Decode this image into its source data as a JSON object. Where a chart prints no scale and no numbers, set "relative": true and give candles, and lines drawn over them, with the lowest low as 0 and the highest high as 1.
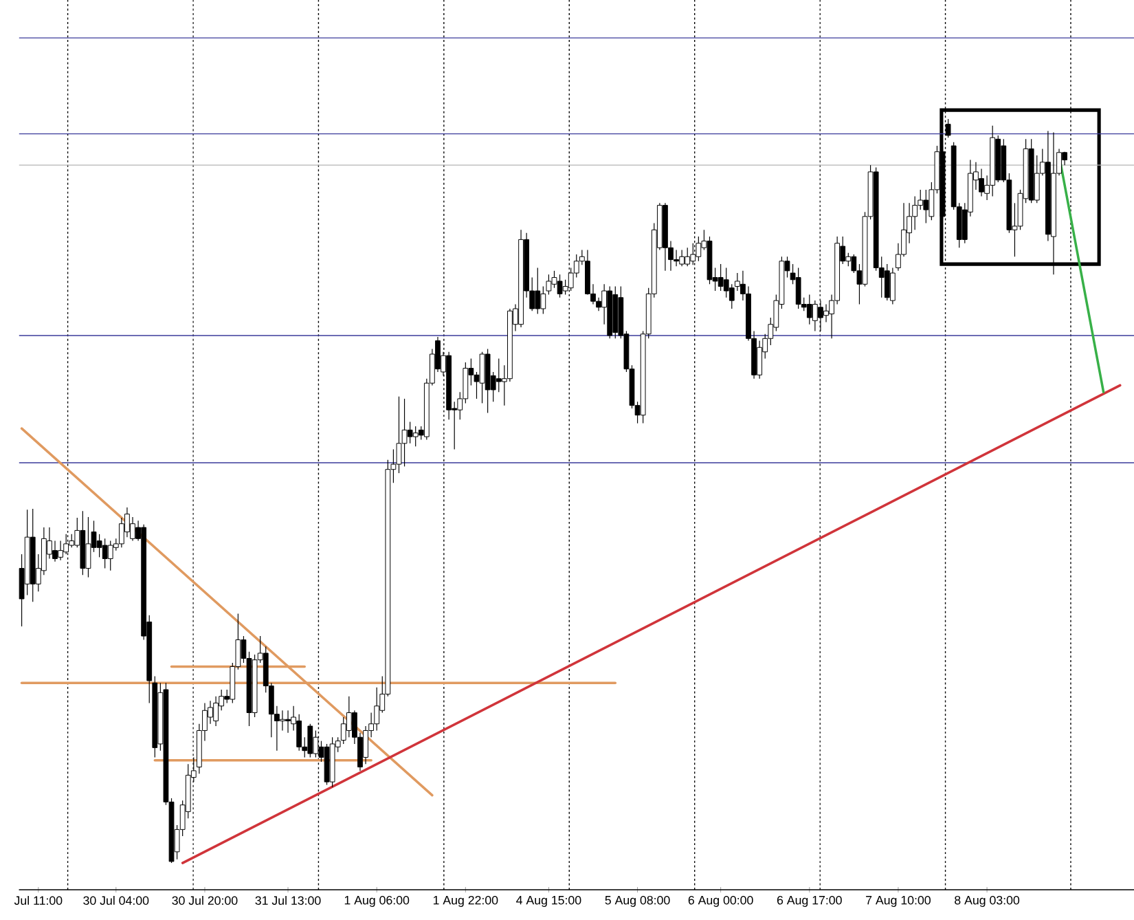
{
  "chart_data": {
    "type": "candlestick",
    "relative": true,
    "categories": [
      null,
      null,
      null,
      "Jul 11:00",
      null,
      null,
      null,
      null,
      null,
      null,
      null,
      null,
      null,
      null,
      null,
      null,
      null,
      "30 Jul 04:00",
      null,
      null,
      null,
      null,
      null,
      null,
      null,
      null,
      null,
      null,
      null,
      null,
      null,
      null,
      null,
      "30 Jul 20:00",
      null,
      null,
      null,
      null,
      null,
      null,
      null,
      null,
      null,
      null,
      null,
      null,
      null,
      null,
      "31 Jul 13:00",
      null,
      null,
      null,
      null,
      null,
      null,
      null,
      null,
      null,
      null,
      null,
      null,
      null,
      null,
      null,
      "1 Aug 06:00",
      null,
      null,
      null,
      null,
      null,
      null,
      null,
      null,
      null,
      null,
      null,
      null,
      null,
      null,
      null,
      "1 Aug 22:00",
      null,
      null,
      null,
      null,
      null,
      null,
      null,
      null,
      null,
      null,
      null,
      null,
      null,
      null,
      "4 Aug 15:00",
      null,
      null,
      null,
      null,
      null,
      null,
      null,
      null,
      null,
      null,
      null,
      null,
      null,
      null,
      null,
      "5 Aug 08:00",
      null,
      null,
      null,
      null,
      null,
      null,
      null,
      null,
      null,
      null,
      null,
      null,
      null,
      null,
      "6 Aug 00:00",
      null,
      null,
      null,
      null,
      null,
      null,
      null,
      null,
      null,
      null,
      null,
      null,
      null,
      null,
      null,
      "6 Aug 17:00",
      null,
      null,
      null,
      null,
      null,
      null,
      null,
      null,
      null,
      null,
      null,
      null,
      null,
      null,
      null,
      "7 Aug 10:00",
      null,
      null,
      null,
      null,
      null,
      null,
      null,
      null,
      null,
      null,
      null,
      null,
      null,
      null,
      null,
      "8 Aug 03:00",
      null,
      null,
      null,
      null,
      null,
      null,
      null,
      null,
      null,
      null,
      null,
      null,
      null,
      null,
      null,
      null,
      null,
      null,
      null,
      null,
      null,
      null,
      null,
      null,
      null,
      null
    ],
    "ohlc": [
      [
        0.396,
        0.415,
        0.318,
        0.355
      ],
      [
        0.375,
        0.475,
        0.36,
        0.438
      ],
      [
        0.438,
        0.476,
        0.351,
        0.375
      ],
      [
        0.375,
        0.415,
        0.365,
        0.396
      ],
      [
        0.393,
        0.451,
        0.387,
        0.436
      ],
      [
        0.415,
        0.451,
        0.409,
        0.433
      ],
      [
        0.42,
        0.433,
        0.405,
        0.409
      ],
      [
        0.411,
        0.433,
        0.407,
        0.42
      ],
      [
        0.418,
        0.442,
        0.415,
        0.429
      ],
      [
        0.427,
        0.442,
        0.424,
        0.433
      ],
      [
        0.427,
        0.464,
        0.424,
        0.447
      ],
      [
        0.447,
        0.473,
        0.387,
        0.396
      ],
      [
        0.396,
        0.465,
        0.384,
        0.429
      ],
      [
        0.445,
        0.46,
        0.418,
        0.424
      ],
      [
        0.433,
        0.442,
        0.411,
        0.424
      ],
      [
        0.427,
        0.436,
        0.396,
        0.409
      ],
      [
        0.409,
        0.433,
        0.393,
        0.427
      ],
      [
        0.424,
        0.436,
        0.42,
        0.429
      ],
      [
        0.429,
        0.464,
        0.424,
        0.456
      ],
      [
        0.445,
        0.478,
        0.438,
        0.469
      ],
      [
        0.436,
        0.465,
        0.433,
        0.456
      ],
      [
        0.451,
        0.46,
        0.433,
        0.436
      ],
      [
        0.451,
        0.455,
        0.3,
        0.305
      ],
      [
        0.324,
        0.333,
        0.215,
        0.245
      ],
      [
        0.242,
        0.251,
        0.142,
        0.155
      ],
      [
        0.16,
        0.242,
        0.151,
        0.229
      ],
      [
        0.233,
        0.242,
        0.078,
        0.082
      ],
      [
        0.082,
        0.087,
        0,
        0.002
      ],
      [
        0.015,
        0.051,
        0.005,
        0.045
      ],
      [
        0.045,
        0.084,
        0.036,
        0.078
      ],
      [
        0.069,
        0.133,
        0.06,
        0.118
      ],
      [
        0.115,
        0.142,
        0.109,
        0.124
      ],
      [
        0.129,
        0.187,
        0.12,
        0.178
      ],
      [
        0.178,
        0.215,
        0.164,
        0.205
      ],
      [
        0.196,
        0.218,
        0.187,
        0.209
      ],
      [
        0.191,
        0.224,
        0.184,
        0.215
      ],
      [
        0.211,
        0.233,
        0.205,
        0.224
      ],
      [
        0.224,
        0.233,
        0.215,
        0.22
      ],
      [
        0.22,
        0.269,
        0.215,
        0.264
      ],
      [
        0.264,
        0.335,
        0.26,
        0.3
      ],
      [
        0.3,
        0.305,
        0.269,
        0.275
      ],
      [
        0.275,
        0.284,
        0.184,
        0.202
      ],
      [
        0.202,
        0.28,
        0.196,
        0.273
      ],
      [
        0.273,
        0.305,
        0.269,
        0.282
      ],
      [
        0.282,
        0.291,
        0.229,
        0.238
      ],
      [
        0.238,
        0.242,
        0.169,
        0.2
      ],
      [
        0.2,
        0.211,
        0.151,
        0.191
      ],
      [
        0.191,
        0.205,
        0.178,
        0.193
      ],
      [
        0.193,
        0.205,
        0.175,
        0.191
      ],
      [
        0.187,
        0.211,
        0.178,
        0.196
      ],
      [
        0.191,
        0.2,
        0.151,
        0.156
      ],
      [
        0.156,
        0.169,
        0.142,
        0.151
      ],
      [
        0.184,
        0.187,
        0.142,
        0.147
      ],
      [
        0.147,
        0.178,
        0.142,
        0.169
      ],
      [
        0.156,
        0.164,
        0.136,
        0.142
      ],
      [
        0.156,
        0.16,
        0.105,
        0.109
      ],
      [
        0.109,
        0.169,
        0.102,
        0.16
      ],
      [
        0.156,
        0.169,
        0.149,
        0.164
      ],
      [
        0.165,
        0.196,
        0.16,
        0.187
      ],
      [
        0.178,
        0.224,
        0.169,
        0.202
      ],
      [
        0.202,
        0.205,
        0.16,
        0.169
      ],
      [
        0.169,
        0.175,
        0.124,
        0.129
      ],
      [
        0.142,
        0.184,
        0.133,
        0.178
      ],
      [
        0.178,
        0.202,
        0.169,
        0.187
      ],
      [
        0.187,
        0.236,
        0.178,
        0.211
      ],
      [
        0.205,
        0.251,
        0.202,
        0.227
      ],
      [
        0.227,
        0.542,
        0.224,
        0.529
      ],
      [
        0.529,
        0.556,
        0.511,
        0.536
      ],
      [
        0.536,
        0.627,
        0.524,
        0.564
      ],
      [
        0.564,
        0.624,
        0.533,
        0.582
      ],
      [
        0.582,
        0.593,
        0.564,
        0.573
      ],
      [
        0.573,
        0.587,
        0.56,
        0.578
      ],
      [
        0.582,
        0.587,
        0.569,
        0.575
      ],
      [
        0.573,
        0.651,
        0.569,
        0.645
      ],
      [
        0.645,
        0.691,
        0.642,
        0.684
      ],
      [
        0.702,
        0.707,
        0.66,
        0.664
      ],
      [
        0.66,
        0.687,
        0.655,
        0.682
      ],
      [
        0.682,
        0.687,
        0.596,
        0.609
      ],
      [
        0.611,
        0.62,
        0.556,
        0.609
      ],
      [
        0.609,
        0.633,
        0.596,
        0.624
      ],
      [
        0.624,
        0.673,
        0.618,
        0.665
      ],
      [
        0.665,
        0.678,
        0.642,
        0.656
      ],
      [
        0.656,
        0.66,
        0.624,
        0.647
      ],
      [
        0.645,
        0.687,
        0.618,
        0.684
      ],
      [
        0.684,
        0.691,
        0.605,
        0.636
      ],
      [
        0.655,
        0.66,
        0.62,
        0.636
      ],
      [
        0.651,
        0.678,
        0.633,
        0.647
      ],
      [
        0.647,
        0.669,
        0.615,
        0.651
      ],
      [
        0.651,
        0.745,
        0.647,
        0.742
      ],
      [
        0.724,
        0.751,
        0.715,
        0.745
      ],
      [
        0.724,
        0.851,
        0.72,
        0.838
      ],
      [
        0.838,
        0.847,
        0.76,
        0.769
      ],
      [
        0.769,
        0.787,
        0.742,
        0.745
      ],
      [
        0.769,
        0.8,
        0.738,
        0.745
      ],
      [
        0.745,
        0.775,
        0.738,
        0.765
      ],
      [
        0.769,
        0.791,
        0.764,
        0.782
      ],
      [
        0.778,
        0.796,
        0.773,
        0.787
      ],
      [
        0.782,
        0.791,
        0.76,
        0.765
      ],
      [
        0.769,
        0.784,
        0.764,
        0.775
      ],
      [
        0.773,
        0.8,
        0.769,
        0.793
      ],
      [
        0.793,
        0.818,
        0.787,
        0.809
      ],
      [
        0.809,
        0.824,
        0.804,
        0.815
      ],
      [
        0.809,
        0.824,
        0.764,
        0.765
      ],
      [
        0.765,
        0.778,
        0.751,
        0.755
      ],
      [
        0.755,
        0.76,
        0.742,
        0.747
      ],
      [
        0.747,
        0.778,
        0.724,
        0.769
      ],
      [
        0.769,
        0.775,
        0.705,
        0.709
      ],
      [
        0.764,
        0.775,
        0.705,
        0.713
      ],
      [
        0.76,
        0.775,
        0.705,
        0.709
      ],
      [
        0.711,
        0.715,
        0.66,
        0.664
      ],
      [
        0.664,
        0.669,
        0.611,
        0.615
      ],
      [
        0.615,
        0.62,
        0.591,
        0.602
      ],
      [
        0.602,
        0.715,
        0.591,
        0.711
      ],
      [
        0.711,
        0.773,
        0.705,
        0.765
      ],
      [
        0.765,
        0.86,
        0.76,
        0.851
      ],
      [
        0.827,
        0.887,
        0.824,
        0.884
      ],
      [
        0.884,
        0.887,
        0.796,
        0.827
      ],
      [
        0.827,
        0.836,
        0.796,
        0.811
      ],
      [
        0.811,
        0.824,
        0.802,
        0.809
      ],
      [
        0.805,
        0.824,
        0.802,
        0.815
      ],
      [
        0.805,
        0.827,
        0.802,
        0.815
      ],
      [
        0.809,
        0.833,
        0.804,
        0.818
      ],
      [
        0.815,
        0.842,
        0.809,
        0.833
      ],
      [
        0.827,
        0.851,
        0.824,
        0.836
      ],
      [
        0.836,
        0.842,
        0.778,
        0.784
      ],
      [
        0.787,
        0.8,
        0.769,
        0.782
      ],
      [
        0.787,
        0.805,
        0.769,
        0.775
      ],
      [
        0.784,
        0.8,
        0.76,
        0.769
      ],
      [
        0.773,
        0.778,
        0.745,
        0.756
      ],
      [
        0.775,
        0.793,
        0.769,
        0.782
      ],
      [
        0.778,
        0.796,
        0.756,
        0.765
      ],
      [
        0.765,
        0.775,
        0.702,
        0.705
      ],
      [
        0.705,
        0.715,
        0.651,
        0.656
      ],
      [
        0.656,
        0.702,
        0.651,
        0.693
      ],
      [
        0.687,
        0.711,
        0.678,
        0.705
      ],
      [
        0.705,
        0.733,
        0.696,
        0.724
      ],
      [
        0.72,
        0.764,
        0.715,
        0.756
      ],
      [
        0.751,
        0.815,
        0.745,
        0.809
      ],
      [
        0.809,
        0.815,
        0.787,
        0.796
      ],
      [
        0.793,
        0.805,
        0.778,
        0.784
      ],
      [
        0.787,
        0.8,
        0.745,
        0.751
      ],
      [
        0.751,
        0.76,
        0.742,
        0.747
      ],
      [
        0.751,
        0.764,
        0.724,
        0.733
      ],
      [
        0.729,
        0.756,
        0.715,
        0.751
      ],
      [
        0.747,
        0.756,
        0.715,
        0.733
      ],
      [
        0.736,
        0.751,
        0.727,
        0.742
      ],
      [
        0.738,
        0.764,
        0.705,
        0.756
      ],
      [
        0.756,
        0.842,
        0.751,
        0.833
      ],
      [
        0.829,
        0.842,
        0.805,
        0.809
      ],
      [
        0.809,
        0.82,
        0.802,
        0.815
      ],
      [
        0.815,
        0.818,
        0.793,
        0.796
      ],
      [
        0.796,
        0.805,
        0.751,
        0.778
      ],
      [
        0.778,
        0.875,
        0.775,
        0.869
      ],
      [
        0.869,
        0.938,
        0.865,
        0.929
      ],
      [
        0.929,
        0.935,
        0.796,
        0.8
      ],
      [
        0.8,
        0.815,
        0.76,
        0.787
      ],
      [
        0.796,
        0.805,
        0.756,
        0.76
      ],
      [
        0.756,
        0.8,
        0.751,
        0.793
      ],
      [
        0.8,
        0.833,
        0.796,
        0.818
      ],
      [
        0.818,
        0.887,
        0.815,
        0.851
      ],
      [
        0.847,
        0.887,
        0.833,
        0.869
      ],
      [
        0.869,
        0.896,
        0.851,
        0.884
      ],
      [
        0.884,
        0.905,
        0.878,
        0.891
      ],
      [
        0.891,
        0.905,
        0.86,
        0.878
      ],
      [
        0.869,
        0.915,
        0.864,
        0.905
      ],
      [
        0.905,
        0.964,
        0.9,
        0.956
      ],
      [
        0.956,
        0.964,
        0.865,
        0.869
      ],
      [
        0.993,
        1,
        0.975,
        0.978
      ],
      [
        0.964,
        0.969,
        0.878,
        0.882
      ],
      [
        0.882,
        0.887,
        0.827,
        0.838
      ],
      [
        0.878,
        0.887,
        0.833,
        0.838
      ],
      [
        0.875,
        0.945,
        0.869,
        0.927
      ],
      [
        0.918,
        0.942,
        0.905,
        0.929
      ],
      [
        0.92,
        0.933,
        0.896,
        0.902
      ],
      [
        0.9,
        0.924,
        0.891,
        0.911
      ],
      [
        0.911,
        0.991,
        0.896,
        0.975
      ],
      [
        0.973,
        0.978,
        0.915,
        0.918
      ],
      [
        0.964,
        0.973,
        0.915,
        0.918
      ],
      [
        0.918,
        0.927,
        0.847,
        0.851
      ],
      [
        0.851,
        0.887,
        0.815,
        0.856
      ],
      [
        0.856,
        0.905,
        0.851,
        0.9
      ],
      [
        0.893,
        0.973,
        0.887,
        0.96
      ],
      [
        0.96,
        0.973,
        0.887,
        0.891
      ],
      [
        0.891,
        0.951,
        0.887,
        0.927
      ],
      [
        0.927,
        0.96,
        0.924,
        0.942
      ],
      [
        0.942,
        0.984,
        0.836,
        0.845
      ],
      [
        0.842,
        0.982,
        0.791,
        0.927
      ],
      [
        0.927,
        0.96,
        0.924,
        0.955
      ],
      [
        0.955,
        0.956,
        0.938,
        0.945
      ],
      null,
      null,
      null,
      null,
      null,
      null,
      null,
      null,
      null,
      null,
      null,
      null
    ],
    "ref_lines": [
      {
        "axis": "y",
        "value": 1.109,
        "color": "#3a3a9a",
        "line_style": "solid"
      },
      {
        "axis": "y",
        "value": 0.98,
        "color": "#3a3a9a",
        "line_style": "solid"
      },
      {
        "axis": "y",
        "value": 0.938,
        "color": "#b4b4b4",
        "line_style": "solid"
      },
      {
        "axis": "y",
        "value": 0.709,
        "color": "#3a3a9a",
        "line_style": "solid"
      },
      {
        "axis": "y",
        "value": 0.538,
        "color": "#3a3a9a",
        "line_style": "solid"
      }
    ],
    "series": [
      {
        "type": "line",
        "color": "#e09a60",
        "values": [
          0.584,
          null,
          null,
          null,
          null,
          null,
          null,
          null,
          null,
          null,
          null,
          null,
          null,
          null,
          null,
          null,
          null,
          null,
          null,
          null,
          null,
          null,
          null,
          null,
          null,
          null,
          null,
          null,
          null,
          null,
          null,
          null,
          null,
          null,
          null,
          null,
          null,
          null,
          null,
          null,
          null,
          null,
          null,
          null,
          null,
          null,
          null,
          null,
          null,
          null,
          null,
          null,
          null,
          null,
          null,
          null,
          null,
          null,
          null,
          null,
          null,
          null,
          null,
          null,
          null,
          null,
          null,
          null,
          null,
          null,
          null,
          null,
          null,
          null,
          0.091,
          null,
          null,
          null,
          null,
          null,
          null,
          null,
          null,
          null,
          null,
          null,
          null,
          null,
          null,
          null,
          null,
          null,
          null,
          null,
          null,
          null,
          null,
          null,
          null,
          null,
          null,
          null,
          null,
          null,
          null,
          null,
          null,
          null,
          null,
          null,
          null,
          null,
          null,
          null,
          null,
          null,
          null,
          null,
          null,
          null,
          null,
          null,
          null,
          null,
          null,
          null,
          null,
          null,
          null,
          null,
          null,
          null,
          null,
          null,
          null,
          null,
          null,
          null,
          null,
          null,
          null,
          null,
          null,
          null,
          null,
          null,
          null,
          null,
          null,
          null,
          null,
          null,
          null,
          null,
          null,
          null,
          null,
          null,
          null,
          null,
          null,
          null,
          null,
          null,
          null,
          null,
          null,
          null,
          null,
          null,
          null,
          null,
          null,
          null,
          null,
          null,
          null,
          null,
          null,
          null,
          null,
          null,
          null,
          null,
          null,
          null,
          null,
          null,
          null,
          null,
          null,
          null,
          null,
          null,
          null,
          null,
          null,
          null,
          null,
          null,
          null
        ]
      },
      {
        "type": "line",
        "color": "#e09a60",
        "values": [
          0.242,
          null,
          null,
          null,
          null,
          null,
          null,
          null,
          null,
          null,
          null,
          null,
          null,
          null,
          null,
          null,
          null,
          null,
          null,
          null,
          null,
          null,
          null,
          null,
          null,
          null,
          null,
          null,
          null,
          null,
          null,
          null,
          null,
          null,
          null,
          null,
          null,
          null,
          null,
          null,
          null,
          null,
          null,
          null,
          null,
          null,
          null,
          null,
          null,
          null,
          null,
          null,
          null,
          null,
          null,
          null,
          null,
          null,
          null,
          null,
          null,
          null,
          null,
          null,
          null,
          null,
          null,
          null,
          null,
          null,
          null,
          null,
          null,
          null,
          null,
          null,
          null,
          null,
          null,
          null,
          null,
          null,
          null,
          null,
          null,
          null,
          null,
          null,
          null,
          null,
          null,
          null,
          null,
          null,
          null,
          null,
          null,
          null,
          null,
          null,
          null,
          null,
          null,
          null,
          null,
          null,
          null,
          0.242,
          null,
          null,
          null,
          null,
          null,
          null,
          null,
          null,
          null,
          null,
          null,
          null,
          null,
          null,
          null,
          null,
          null,
          null,
          null,
          null,
          null,
          null,
          null,
          null,
          null,
          null,
          null,
          null,
          null,
          null,
          null,
          null,
          null,
          null,
          null,
          null,
          null,
          null,
          null,
          null,
          null,
          null,
          null,
          null,
          null,
          null,
          null,
          null,
          null,
          null,
          null,
          null,
          null,
          null,
          null,
          null,
          null,
          null,
          null,
          null,
          null,
          null,
          null,
          null,
          null,
          null,
          null,
          null,
          null,
          null,
          null,
          null,
          null,
          null,
          null,
          null,
          null,
          null,
          null,
          null,
          null,
          null,
          null,
          null,
          null,
          null,
          null,
          null,
          null,
          null,
          null,
          null,
          null
        ]
      },
      {
        "type": "line",
        "color": "#e09a60",
        "values": [
          null,
          null,
          null,
          null,
          null,
          null,
          null,
          null,
          null,
          null,
          null,
          null,
          null,
          null,
          null,
          null,
          null,
          null,
          null,
          null,
          null,
          null,
          null,
          null,
          null,
          null,
          null,
          0.264,
          null,
          null,
          null,
          null,
          null,
          null,
          null,
          null,
          null,
          null,
          null,
          null,
          null,
          null,
          null,
          null,
          null,
          null,
          null,
          null,
          null,
          null,
          null,
          0.264,
          null,
          null,
          null,
          null,
          null,
          null,
          null,
          null,
          null,
          null,
          null,
          null,
          null,
          null,
          null,
          null,
          null,
          null,
          null,
          null,
          null,
          null,
          null,
          null,
          null,
          null,
          null,
          null,
          null,
          null,
          null,
          null,
          null,
          null,
          null,
          null,
          null,
          null,
          null,
          null,
          null,
          null,
          null,
          null,
          null,
          null,
          null,
          null,
          null,
          null,
          null,
          null,
          null,
          null,
          null,
          null,
          null,
          null,
          null,
          null,
          null,
          null,
          null,
          null,
          null,
          null,
          null,
          null,
          null,
          null,
          null,
          null,
          null,
          null,
          null,
          null,
          null,
          null,
          null,
          null,
          null,
          null,
          null,
          null,
          null,
          null,
          null,
          null,
          null,
          null,
          null,
          null,
          null,
          null,
          null,
          null,
          null,
          null,
          null,
          null,
          null,
          null,
          null,
          null,
          null,
          null,
          null,
          null,
          null,
          null,
          null,
          null,
          null,
          null,
          null,
          null,
          null,
          null,
          null,
          null,
          null,
          null,
          null,
          null,
          null,
          null,
          null,
          null,
          null,
          null,
          null,
          null,
          null,
          null,
          null,
          null,
          null,
          null,
          null,
          null,
          null,
          null,
          null,
          null,
          null,
          null,
          null,
          null,
          null
        ]
      },
      {
        "type": "line",
        "color": "#e09a60",
        "values": [
          null,
          null,
          null,
          null,
          null,
          null,
          null,
          null,
          null,
          null,
          null,
          null,
          null,
          null,
          null,
          null,
          null,
          null,
          null,
          null,
          null,
          null,
          null,
          null,
          0.138,
          null,
          null,
          null,
          null,
          null,
          null,
          null,
          null,
          null,
          null,
          null,
          null,
          null,
          null,
          null,
          null,
          null,
          null,
          null,
          null,
          null,
          null,
          null,
          null,
          null,
          null,
          null,
          null,
          null,
          null,
          null,
          null,
          null,
          null,
          null,
          null,
          null,
          null,
          0.138,
          null,
          null,
          null,
          null,
          null,
          null,
          null,
          null,
          null,
          null,
          null,
          null,
          null,
          null,
          null,
          null,
          null,
          null,
          null,
          null,
          null,
          null,
          null,
          null,
          null,
          null,
          null,
          null,
          null,
          null,
          null,
          null,
          null,
          null,
          null,
          null,
          null,
          null,
          null,
          null,
          null,
          null,
          null,
          null,
          null,
          null,
          null,
          null,
          null,
          null,
          null,
          null,
          null,
          null,
          null,
          null,
          null,
          null,
          null,
          null,
          null,
          null,
          null,
          null,
          null,
          null,
          null,
          null,
          null,
          null,
          null,
          null,
          null,
          null,
          null,
          null,
          null,
          null,
          null,
          null,
          null,
          null,
          null,
          null,
          null,
          null,
          null,
          null,
          null,
          null,
          null,
          null,
          null,
          null,
          null,
          null,
          null,
          null,
          null,
          null,
          null,
          null,
          null,
          null,
          null,
          null,
          null,
          null,
          null,
          null,
          null,
          null,
          null,
          null,
          null,
          null,
          null,
          null,
          null,
          null,
          null,
          null,
          null,
          null,
          null,
          null,
          null,
          null,
          null,
          null,
          null,
          null,
          null,
          null,
          null,
          null,
          null
        ]
      },
      {
        "type": "line",
        "color": "#d0343a",
        "values": [
          null,
          null,
          null,
          null,
          null,
          null,
          null,
          null,
          null,
          null,
          null,
          null,
          null,
          null,
          null,
          null,
          null,
          null,
          null,
          null,
          null,
          null,
          null,
          null,
          null,
          null,
          null,
          null,
          null,
          0,
          null,
          null,
          null,
          null,
          null,
          null,
          null,
          null,
          null,
          null,
          null,
          null,
          null,
          null,
          null,
          null,
          null,
          null,
          null,
          null,
          null,
          null,
          null,
          null,
          null,
          null,
          null,
          null,
          null,
          null,
          null,
          null,
          null,
          null,
          null,
          null,
          null,
          null,
          null,
          null,
          null,
          null,
          null,
          null,
          null,
          null,
          null,
          null,
          null,
          null,
          null,
          null,
          null,
          null,
          null,
          null,
          null,
          null,
          null,
          null,
          null,
          null,
          null,
          null,
          null,
          null,
          null,
          null,
          null,
          null,
          null,
          null,
          null,
          null,
          null,
          null,
          null,
          null,
          null,
          null,
          null,
          null,
          null,
          null,
          null,
          null,
          null,
          null,
          null,
          null,
          null,
          null,
          null,
          null,
          null,
          null,
          null,
          null,
          null,
          null,
          null,
          null,
          null,
          null,
          null,
          null,
          null,
          null,
          null,
          null,
          null,
          null,
          null,
          null,
          null,
          null,
          null,
          null,
          null,
          null,
          null,
          null,
          null,
          null,
          null,
          null,
          null,
          null,
          null,
          null,
          null,
          null,
          null,
          null,
          null,
          null,
          null,
          null,
          null,
          null,
          null,
          null,
          null,
          null,
          null,
          null,
          null,
          null,
          null,
          null,
          null,
          null,
          null,
          null,
          null,
          null,
          null,
          null,
          null,
          null,
          null,
          null,
          null,
          null,
          null,
          null,
          null,
          null,
          0.642,
          null,
          null
        ]
      },
      {
        "type": "line",
        "color": "#38b048",
        "values": [
          null,
          null,
          null,
          null,
          null,
          null,
          null,
          null,
          null,
          null,
          null,
          null,
          null,
          null,
          null,
          null,
          null,
          null,
          null,
          null,
          null,
          null,
          null,
          null,
          null,
          null,
          null,
          null,
          null,
          null,
          null,
          null,
          null,
          null,
          null,
          null,
          null,
          null,
          null,
          null,
          null,
          null,
          null,
          null,
          null,
          null,
          null,
          null,
          null,
          null,
          null,
          null,
          null,
          null,
          null,
          null,
          null,
          null,
          null,
          null,
          null,
          null,
          null,
          null,
          null,
          null,
          null,
          null,
          null,
          null,
          null,
          null,
          null,
          null,
          null,
          null,
          null,
          null,
          null,
          null,
          null,
          null,
          null,
          null,
          null,
          null,
          null,
          null,
          null,
          null,
          null,
          null,
          null,
          null,
          null,
          null,
          null,
          null,
          null,
          null,
          null,
          null,
          null,
          null,
          null,
          null,
          null,
          null,
          null,
          null,
          null,
          null,
          null,
          null,
          null,
          null,
          null,
          null,
          null,
          null,
          null,
          null,
          null,
          null,
          null,
          null,
          null,
          null,
          null,
          null,
          null,
          null,
          null,
          null,
          null,
          null,
          null,
          null,
          null,
          null,
          null,
          null,
          null,
          null,
          null,
          null,
          null,
          null,
          null,
          null,
          null,
          null,
          null,
          null,
          null,
          null,
          null,
          null,
          null,
          null,
          null,
          null,
          null,
          null,
          null,
          null,
          null,
          null,
          null,
          null,
          null,
          null,
          null,
          null,
          null,
          null,
          null,
          null,
          null,
          null,
          null,
          null,
          null,
          null,
          null,
          null,
          null,
          0.951,
          null,
          null,
          null,
          null,
          null,
          null,
          null,
          0.633,
          null,
          null,
          null,
          null,
          null
        ]
      }
    ]
  }
}
